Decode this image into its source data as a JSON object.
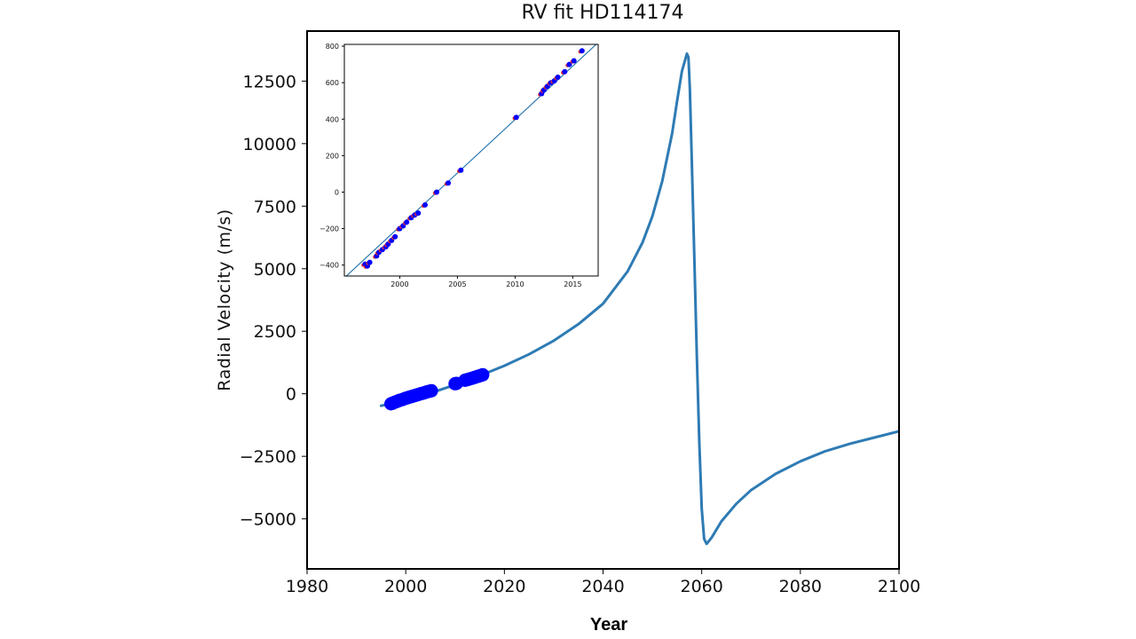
{
  "chart_data": [
    {
      "type": "line",
      "title": "RV fit HD114174",
      "xlabel": "Year",
      "ylabel": "Radial Velocity (m/s)",
      "xlim": [
        1980,
        2100
      ],
      "ylim": [
        -7000,
        14500
      ],
      "x_ticks": [
        "1980",
        "2000",
        "2020",
        "2040",
        "2060",
        "2080",
        "2100"
      ],
      "y_ticks": [
        "−5000",
        "−2500",
        "0",
        "2500",
        "5000",
        "7500",
        "10000",
        "12500"
      ],
      "line_color": "#2e7bb4",
      "marker_color": "#0000ff",
      "grid": false,
      "series": [
        {
          "type": "line",
          "x": [
            1995,
            2000,
            2005,
            2010,
            2015,
            2020,
            2025,
            2030,
            2035,
            2040,
            2045,
            2048,
            2050,
            2052,
            2054,
            2055,
            2056,
            2057,
            2057.3,
            2057.6,
            2058,
            2058.5,
            2059,
            2059.5,
            2060,
            2060.5,
            2061,
            2062,
            2064,
            2067,
            2070,
            2075,
            2080,
            2085,
            2090,
            2095,
            2100
          ],
          "y": [
            -480,
            -260,
            30,
            360,
            720,
            1120,
            1580,
            2120,
            2780,
            3600,
            4900,
            6050,
            7100,
            8500,
            10400,
            11700,
            12900,
            13600,
            13450,
            12200,
            9300,
            5500,
            1600,
            -1900,
            -4600,
            -5800,
            -6000,
            -5750,
            -5100,
            -4400,
            -3850,
            -3200,
            -2700,
            -2300,
            -2000,
            -1750,
            -1500
          ]
        },
        {
          "type": "scatter",
          "x": [
            1997.0,
            1997.3,
            1997.6,
            1998.0,
            1998.4,
            1998.8,
            1999.2,
            1999.6,
            2000.0,
            2000.4,
            2000.8,
            2001.2,
            2001.6,
            2002.0,
            2002.4,
            2002.8,
            2003.2,
            2003.6,
            2004.0,
            2004.4,
            2004.8,
            2005.2,
            2010.0,
            2010.3,
            2012.0,
            2012.4,
            2012.8,
            2013.2,
            2013.6,
            2014.0,
            2014.4,
            2014.8,
            2015.2,
            2015.6
          ],
          "y": [
            -400,
            -380,
            -350,
            -320,
            -290,
            -260,
            -240,
            -210,
            -180,
            -155,
            -130,
            -110,
            -85,
            -60,
            -40,
            -15,
            10,
            30,
            55,
            80,
            100,
            120,
            400,
            415,
            540,
            560,
            585,
            605,
            630,
            655,
            680,
            705,
            730,
            760
          ]
        }
      ]
    },
    {
      "type": "scatter",
      "xlim": [
        1995.2,
        2017.2
      ],
      "ylim": [
        -460,
        810
      ],
      "x_ticks": [
        "2000",
        "2005",
        "2010",
        "2015"
      ],
      "y_ticks": [
        "−400",
        "−200",
        "0",
        "200",
        "400",
        "600",
        "800"
      ],
      "line_color": "#2e7bb4",
      "marker_color": "#0000ff",
      "model_point_color": "#e03030",
      "series": [
        {
          "type": "line",
          "x": [
            1995.2,
            2017.2
          ],
          "y": [
            -470,
            820
          ]
        },
        {
          "type": "scatter",
          "x": [
            1997.0,
            1997.2,
            1997.4,
            1998.0,
            1998.2,
            1998.5,
            1998.8,
            1999.0,
            1999.3,
            1999.6,
            2000.0,
            2000.3,
            2000.6,
            2001.0,
            2001.3,
            2001.6,
            2002.2,
            2003.2,
            2004.2,
            2005.3,
            2010.1,
            2012.3,
            2012.5,
            2012.8,
            2013.1,
            2013.4,
            2013.7,
            2014.3,
            2014.7,
            2015.1,
            2015.8
          ],
          "y": [
            -395,
            -405,
            -385,
            -350,
            -330,
            -315,
            -300,
            -285,
            -265,
            -245,
            -200,
            -185,
            -165,
            -140,
            -125,
            -115,
            -70,
            0,
            50,
            120,
            410,
            540,
            560,
            580,
            600,
            610,
            630,
            660,
            700,
            720,
            775
          ]
        }
      ]
    }
  ]
}
